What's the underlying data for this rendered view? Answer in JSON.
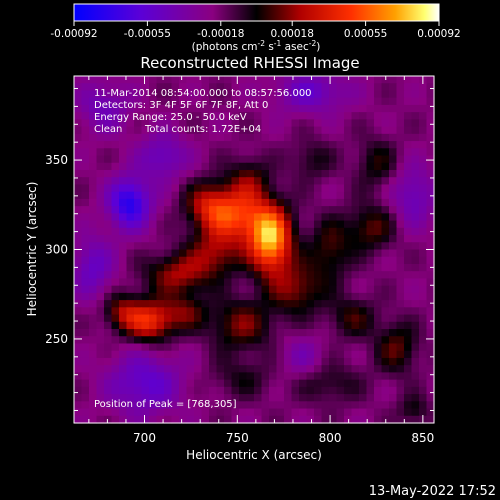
{
  "chart_data": {
    "type": "heatmap",
    "title": "Reconstructed RHESSI Image",
    "xlabel": "Heliocentric X (arcsec)",
    "ylabel": "Heliocentric Y (arcsec)",
    "xlim": [
      662,
      856
    ],
    "ylim": [
      203,
      397
    ],
    "x_ticks": [
      700,
      750,
      800,
      850
    ],
    "y_ticks": [
      250,
      300,
      350
    ],
    "colorbar": {
      "range": [
        -0.00092,
        0.00092
      ],
      "tick_values": [
        -0.00092,
        -0.00055,
        -0.00018,
        0.00018,
        0.00055,
        0.00092
      ],
      "tick_labels": [
        "-0.00092",
        "-0.00055",
        "-0.00018",
        "0.00018",
        "0.00055",
        "0.00092"
      ],
      "unit_label": "(photons cm",
      "unit_sup1": "-2",
      "unit_mid": " s",
      "unit_sup2": "-1",
      "unit_mid2": " asec",
      "unit_sup3": "-2",
      "unit_end": ")"
    },
    "annotations": {
      "time_range": "11-Mar-2014 08:54:00.000 to 08:57:56.000",
      "detectors": "Detectors: 3F 4F 5F 6F 7F 8F, Att 0",
      "energy": "Energy Range: 25.0 - 50.0 keV",
      "algorithm": "Clean",
      "counts": "Total counts: 1.72E+04",
      "peak": "Position of Peak = [768,305]"
    },
    "blobs": [
      {
        "x": 768,
        "y": 305,
        "amp": 0.00092,
        "sx": 8,
        "sy": 13
      },
      {
        "x": 750,
        "y": 318,
        "amp": 0.00058,
        "sx": 12,
        "sy": 10
      },
      {
        "x": 735,
        "y": 325,
        "amp": 0.00042,
        "sx": 9,
        "sy": 9
      },
      {
        "x": 756,
        "y": 338,
        "amp": 0.0003,
        "sx": 8,
        "sy": 9
      },
      {
        "x": 738,
        "y": 298,
        "amp": 0.00036,
        "sx": 10,
        "sy": 9
      },
      {
        "x": 718,
        "y": 286,
        "amp": 0.0004,
        "sx": 12,
        "sy": 8
      },
      {
        "x": 703,
        "y": 260,
        "amp": 0.0006,
        "sx": 9,
        "sy": 8
      },
      {
        "x": 688,
        "y": 265,
        "amp": 0.00035,
        "sx": 7,
        "sy": 7
      },
      {
        "x": 722,
        "y": 265,
        "amp": 0.00028,
        "sx": 8,
        "sy": 7
      },
      {
        "x": 752,
        "y": 258,
        "amp": 0.00034,
        "sx": 12,
        "sy": 10
      },
      {
        "x": 782,
        "y": 278,
        "amp": 0.00035,
        "sx": 10,
        "sy": 10
      },
      {
        "x": 800,
        "y": 300,
        "amp": 0.00028,
        "sx": 8,
        "sy": 12
      },
      {
        "x": 822,
        "y": 312,
        "amp": 0.0003,
        "sx": 9,
        "sy": 9
      },
      {
        "x": 812,
        "y": 262,
        "amp": 0.00025,
        "sx": 9,
        "sy": 8
      },
      {
        "x": 836,
        "y": 245,
        "amp": 0.0003,
        "sx": 8,
        "sy": 10
      },
      {
        "x": 845,
        "y": 210,
        "amp": 0.0002,
        "sx": 6,
        "sy": 6
      },
      {
        "x": 800,
        "y": 225,
        "amp": 0.00018,
        "sx": 12,
        "sy": 8
      },
      {
        "x": 752,
        "y": 228,
        "amp": 0.00016,
        "sx": 12,
        "sy": 8
      },
      {
        "x": 825,
        "y": 348,
        "amp": 0.00022,
        "sx": 8,
        "sy": 10
      },
      {
        "x": 790,
        "y": 350,
        "amp": 0.00018,
        "sx": 8,
        "sy": 8
      },
      {
        "x": 692,
        "y": 326,
        "amp": -0.00058,
        "sx": 8,
        "sy": 10
      },
      {
        "x": 710,
        "y": 352,
        "amp": -0.0003,
        "sx": 9,
        "sy": 9
      },
      {
        "x": 672,
        "y": 290,
        "amp": -0.0003,
        "sx": 8,
        "sy": 12
      },
      {
        "x": 700,
        "y": 225,
        "amp": -0.00035,
        "sx": 14,
        "sy": 12
      },
      {
        "x": 790,
        "y": 388,
        "amp": -0.0003,
        "sx": 14,
        "sy": 8
      },
      {
        "x": 845,
        "y": 330,
        "amp": -0.00028,
        "sx": 8,
        "sy": 12
      },
      {
        "x": 785,
        "y": 240,
        "amp": -0.00018,
        "sx": 8,
        "sy": 8
      },
      {
        "x": 678,
        "y": 380,
        "amp": -0.00025,
        "sx": 10,
        "sy": 10
      }
    ]
  },
  "footer": {
    "timestamp": "13-May-2022 17:52"
  }
}
